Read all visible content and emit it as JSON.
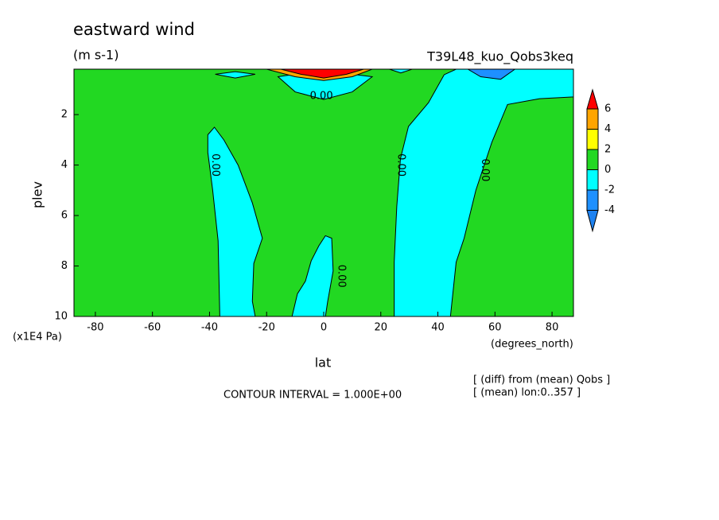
{
  "chart_data": {
    "type": "contour",
    "title": "eastward wind",
    "units": "(m s-1)",
    "dataset": "T39L48_kuo_Qobs3keq",
    "x_label": "lat",
    "x_units": "(degrees_north)",
    "y_label": "plev",
    "y_units": "(x1E4 Pa)",
    "note": "CONTOUR INTERVAL = 1.000E+00",
    "info": [
      "[ (diff) from (mean) Qobs ]",
      "[ (mean) lon:0..357 ]"
    ],
    "xlim": [
      -87.5,
      87.5
    ],
    "xticks": [
      -80,
      -60,
      -40,
      -20,
      0,
      20,
      40,
      60,
      80
    ],
    "ylim": [
      10,
      0.2
    ],
    "yticks": [
      2,
      4,
      6,
      8,
      10
    ],
    "levels": [
      -4,
      -2,
      0,
      2,
      4,
      6
    ],
    "colors": [
      "#1e82f0",
      "#1e90ff",
      "#00ffff",
      "#22d822",
      "#ffff00",
      "#ffa500",
      "#ff0000"
    ],
    "background_band": 3,
    "regions": [
      {
        "band": 2,
        "lat": [
          -40.6,
          -38.3,
          -35,
          -30,
          -25,
          -21.5,
          -24.5,
          -25,
          -24,
          -36.4,
          -37,
          -38.9,
          -40.6
        ],
        "plev": [
          2.8,
          2.5,
          3,
          4,
          5.5,
          6.9,
          7.9,
          9.4,
          10,
          10,
          7,
          5,
          3.5
        ]
      },
      {
        "band": 2,
        "lat": [
          -11.1,
          -9.2,
          -6.4,
          -4.4,
          -1.7,
          0.6,
          2.8,
          3.3,
          1.4,
          0.6
        ],
        "plev": [
          10,
          9.1,
          8.6,
          7.8,
          7.2,
          6.8,
          6.9,
          8.2,
          9.4,
          10
        ]
      },
      {
        "band": 2,
        "lat": [
          46.4,
          42.2,
          36.7,
          29.7,
          26.9,
          25.6,
          24.7,
          24.7,
          44.4,
          46.4,
          49.2,
          53.3,
          58.9,
          64.4,
          75.6,
          87.5,
          87.5
        ],
        "plev": [
          0.2,
          0.42,
          1.53,
          2.47,
          3.74,
          5.64,
          7.85,
          10,
          10,
          7.85,
          6.9,
          5.0,
          3.1,
          1.6,
          1.37,
          1.3,
          0.2
        ]
      },
      {
        "band": 1,
        "lat": [
          50.5,
          55,
          62,
          67,
          62,
          55
        ],
        "plev": [
          0.2,
          0.5,
          0.6,
          0.2,
          0.2,
          0.2
        ]
      },
      {
        "band": 2,
        "lat": [
          -16,
          -10,
          0,
          10,
          17,
          10,
          0,
          -10
        ],
        "plev": [
          0.5,
          1.1,
          1.4,
          1.1,
          0.5,
          0.4,
          0.4,
          0.4
        ]
      },
      {
        "band": 2,
        "lat": [
          -38,
          -31,
          -24,
          -31
        ],
        "plev": [
          0.4,
          0.55,
          0.4,
          0.3
        ]
      },
      {
        "band": 2,
        "lat": [
          23,
          27,
          31,
          27
        ],
        "plev": [
          0.2,
          0.35,
          0.2,
          0.15
        ]
      },
      {
        "band": 5,
        "lat": [
          -20,
          -10,
          0,
          10,
          17,
          10,
          0,
          -10
        ],
        "plev": [
          0.2,
          0.5,
          0.65,
          0.5,
          0.2,
          0.2,
          0.2,
          0.2
        ]
      },
      {
        "band": 6,
        "lat": [
          -15,
          -8,
          0,
          8,
          14,
          8,
          0,
          -8
        ],
        "plev": [
          0.2,
          0.4,
          0.55,
          0.4,
          0.2,
          0.2,
          0.2,
          0.2
        ]
      }
    ],
    "contour_labels": [
      {
        "lat": -38,
        "plev": 4.0,
        "label": "0.00"
      },
      {
        "lat": 27,
        "plev": 4.0,
        "label": "0.00"
      },
      {
        "lat": 56.4,
        "plev": 4.2,
        "label": "0.00"
      },
      {
        "lat": 6.1,
        "plev": 8.4,
        "label": "0.00"
      },
      {
        "lat": -0.8,
        "plev": 1.27,
        "label": "0.00"
      }
    ]
  }
}
